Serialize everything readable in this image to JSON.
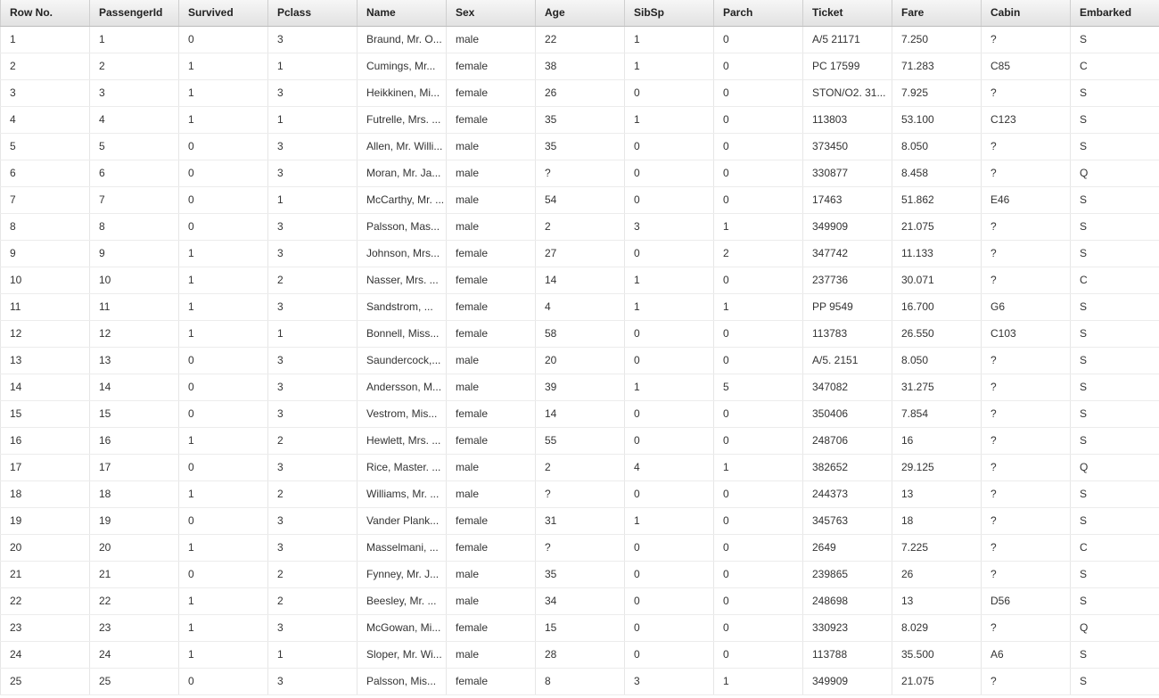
{
  "table": {
    "headers": [
      "Row No.",
      "PassengerId",
      "Survived",
      "Pclass",
      "Name",
      "Sex",
      "Age",
      "SibSp",
      "Parch",
      "Ticket",
      "Fare",
      "Cabin",
      "Embarked"
    ],
    "rows": [
      [
        "1",
        "1",
        "0",
        "3",
        "Braund, Mr. O...",
        "male",
        "22",
        "1",
        "0",
        "A/5 21171",
        "7.250",
        "?",
        "S"
      ],
      [
        "2",
        "2",
        "1",
        "1",
        "Cumings, Mr...",
        "female",
        "38",
        "1",
        "0",
        "PC 17599",
        "71.283",
        "C85",
        "C"
      ],
      [
        "3",
        "3",
        "1",
        "3",
        "Heikkinen, Mi...",
        "female",
        "26",
        "0",
        "0",
        "STON/O2. 31...",
        "7.925",
        "?",
        "S"
      ],
      [
        "4",
        "4",
        "1",
        "1",
        "Futrelle, Mrs. ...",
        "female",
        "35",
        "1",
        "0",
        "113803",
        "53.100",
        "C123",
        "S"
      ],
      [
        "5",
        "5",
        "0",
        "3",
        "Allen, Mr. Willi...",
        "male",
        "35",
        "0",
        "0",
        "373450",
        "8.050",
        "?",
        "S"
      ],
      [
        "6",
        "6",
        "0",
        "3",
        "Moran, Mr. Ja...",
        "male",
        "?",
        "0",
        "0",
        "330877",
        "8.458",
        "?",
        "Q"
      ],
      [
        "7",
        "7",
        "0",
        "1",
        "McCarthy, Mr. ...",
        "male",
        "54",
        "0",
        "0",
        "17463",
        "51.862",
        "E46",
        "S"
      ],
      [
        "8",
        "8",
        "0",
        "3",
        "Palsson, Mas...",
        "male",
        "2",
        "3",
        "1",
        "349909",
        "21.075",
        "?",
        "S"
      ],
      [
        "9",
        "9",
        "1",
        "3",
        "Johnson, Mrs...",
        "female",
        "27",
        "0",
        "2",
        "347742",
        "11.133",
        "?",
        "S"
      ],
      [
        "10",
        "10",
        "1",
        "2",
        "Nasser, Mrs. ...",
        "female",
        "14",
        "1",
        "0",
        "237736",
        "30.071",
        "?",
        "C"
      ],
      [
        "11",
        "11",
        "1",
        "3",
        "Sandstrom, ...",
        "female",
        "4",
        "1",
        "1",
        "PP 9549",
        "16.700",
        "G6",
        "S"
      ],
      [
        "12",
        "12",
        "1",
        "1",
        "Bonnell, Miss...",
        "female",
        "58",
        "0",
        "0",
        "113783",
        "26.550",
        "C103",
        "S"
      ],
      [
        "13",
        "13",
        "0",
        "3",
        "Saundercock,...",
        "male",
        "20",
        "0",
        "0",
        "A/5. 2151",
        "8.050",
        "?",
        "S"
      ],
      [
        "14",
        "14",
        "0",
        "3",
        "Andersson, M...",
        "male",
        "39",
        "1",
        "5",
        "347082",
        "31.275",
        "?",
        "S"
      ],
      [
        "15",
        "15",
        "0",
        "3",
        "Vestrom, Mis...",
        "female",
        "14",
        "0",
        "0",
        "350406",
        "7.854",
        "?",
        "S"
      ],
      [
        "16",
        "16",
        "1",
        "2",
        "Hewlett, Mrs. ...",
        "female",
        "55",
        "0",
        "0",
        "248706",
        "16",
        "?",
        "S"
      ],
      [
        "17",
        "17",
        "0",
        "3",
        "Rice, Master. ...",
        "male",
        "2",
        "4",
        "1",
        "382652",
        "29.125",
        "?",
        "Q"
      ],
      [
        "18",
        "18",
        "1",
        "2",
        "Williams, Mr. ...",
        "male",
        "?",
        "0",
        "0",
        "244373",
        "13",
        "?",
        "S"
      ],
      [
        "19",
        "19",
        "0",
        "3",
        "Vander Plank...",
        "female",
        "31",
        "1",
        "0",
        "345763",
        "18",
        "?",
        "S"
      ],
      [
        "20",
        "20",
        "1",
        "3",
        "Masselmani, ...",
        "female",
        "?",
        "0",
        "0",
        "2649",
        "7.225",
        "?",
        "C"
      ],
      [
        "21",
        "21",
        "0",
        "2",
        "Fynney, Mr. J...",
        "male",
        "35",
        "0",
        "0",
        "239865",
        "26",
        "?",
        "S"
      ],
      [
        "22",
        "22",
        "1",
        "2",
        "Beesley, Mr. ...",
        "male",
        "34",
        "0",
        "0",
        "248698",
        "13",
        "D56",
        "S"
      ],
      [
        "23",
        "23",
        "1",
        "3",
        "McGowan, Mi...",
        "female",
        "15",
        "0",
        "0",
        "330923",
        "8.029",
        "?",
        "Q"
      ],
      [
        "24",
        "24",
        "1",
        "1",
        "Sloper, Mr. Wi...",
        "male",
        "28",
        "0",
        "0",
        "113788",
        "35.500",
        "A6",
        "S"
      ],
      [
        "25",
        "25",
        "0",
        "3",
        "Palsson, Mis...",
        "female",
        "8",
        "3",
        "1",
        "349909",
        "21.075",
        "?",
        "S"
      ]
    ]
  }
}
